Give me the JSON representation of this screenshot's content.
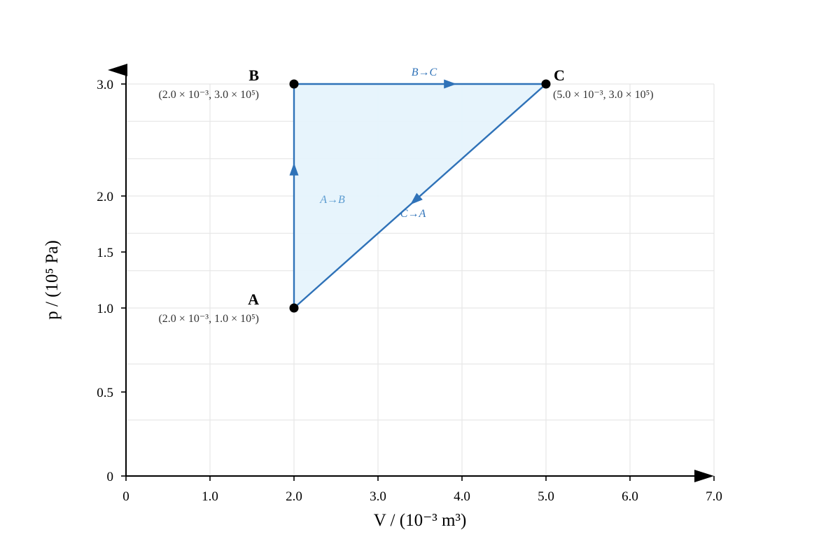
{
  "chart_data": {
    "type": "line",
    "xlabel": "V / (10⁻³ m³)",
    "ylabel": "p / (10⁵ Pa)",
    "xlim": [
      0,
      7
    ],
    "ylim": [
      0,
      3
    ],
    "x_ticks": [
      {
        "value": 0,
        "label": "0"
      },
      {
        "value": 1,
        "label": "1.0"
      },
      {
        "value": 2,
        "label": "2.0"
      },
      {
        "value": 3,
        "label": "3.0"
      },
      {
        "value": 4,
        "label": "4.0"
      },
      {
        "value": 5,
        "label": "5.0"
      },
      {
        "value": 6,
        "label": "6.0"
      },
      {
        "value": 7,
        "label": "7.0"
      }
    ],
    "y_ticks": [
      {
        "value": 0,
        "label": "0"
      },
      {
        "value": 0.5,
        "label": "0.5"
      },
      {
        "value": 1,
        "label": "1.0"
      },
      {
        "value": 1.5,
        "label": "1.5"
      },
      {
        "value": 2,
        "label": "2.0"
      },
      {
        "value": 3,
        "label": "3.0"
      }
    ],
    "grid": true,
    "points": [
      {
        "name": "A",
        "x": 2,
        "y": 1,
        "coord": "(2.0 × 10⁻³, 1.0 × 10⁵)"
      },
      {
        "name": "B",
        "x": 2,
        "y": 3,
        "coord": "(2.0 × 10⁻³, 3.0 × 10⁵)"
      },
      {
        "name": "C",
        "x": 5,
        "y": 3,
        "coord": "(5.0 × 10⁻³, 3.0 × 10⁵)"
      }
    ],
    "processes": [
      {
        "label": "A→B",
        "from": "A",
        "to": "B"
      },
      {
        "label": "B→C",
        "from": "B",
        "to": "C"
      },
      {
        "label": "C→A",
        "from": "C",
        "to": "A"
      }
    ],
    "colors": {
      "line": "#2f72b8",
      "fill": "#e6f3fc",
      "grid": "#e6e6e6",
      "label_ab": "#5b9bd0",
      "label_other": "#2f72b8"
    }
  }
}
